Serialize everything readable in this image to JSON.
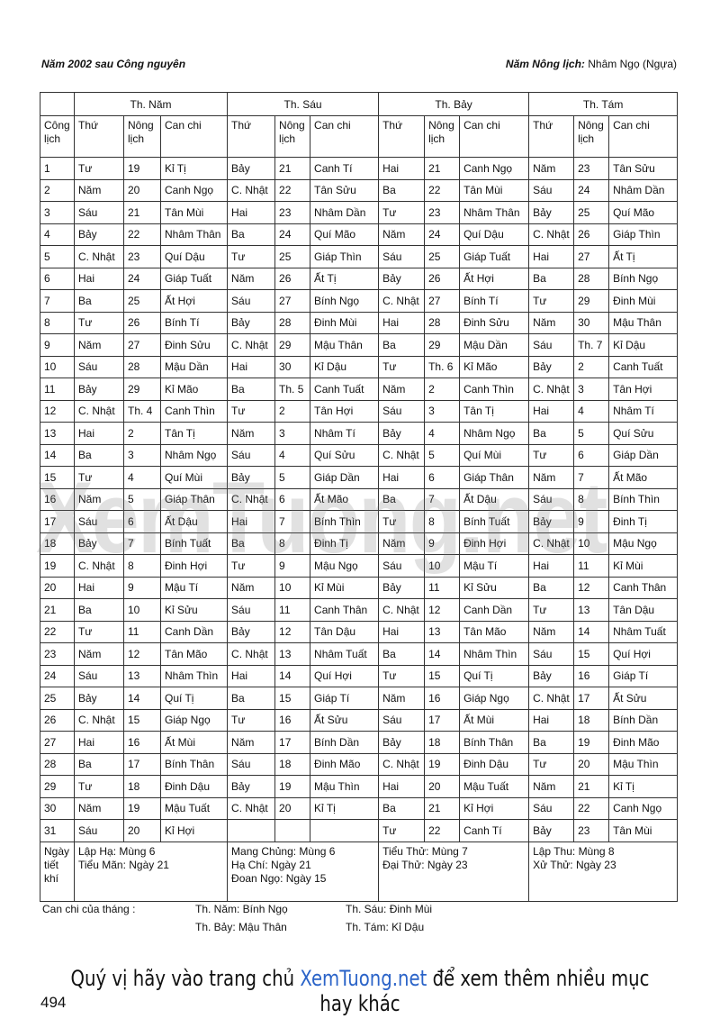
{
  "header": {
    "left": "Năm 2002  sau Công nguyên",
    "right_label": "Năm Nông lịch:",
    "right_value": "Nhâm Ngọ (Ngựa)"
  },
  "table": {
    "months": [
      "Th. Năm",
      "Th. Sáu",
      "Th. Bảy",
      "Th. Tám"
    ],
    "day_header": "Công lịch",
    "sub_headers": [
      "Thứ",
      "Nông lịch",
      "Can chi"
    ],
    "rows": [
      [
        1,
        "Tư",
        19,
        "Kỉ Tị",
        "Bảy",
        21,
        "Canh Tí",
        "Hai",
        21,
        "Canh Ngọ",
        "Năm",
        23,
        "Tân Sửu"
      ],
      [
        2,
        "Năm",
        20,
        "Canh Ngọ",
        "C. Nhật",
        22,
        "Tân Sửu",
        "Ba",
        22,
        "Tân Mùi",
        "Sáu",
        24,
        "Nhâm Dần"
      ],
      [
        3,
        "Sáu",
        21,
        "Tân Mùi",
        "Hai",
        23,
        "Nhâm Dần",
        "Tư",
        23,
        "Nhâm Thân",
        "Bảy",
        25,
        "Quí Mão"
      ],
      [
        4,
        "Bảy",
        22,
        "Nhâm Thân",
        "Ba",
        24,
        "Quí Mão",
        "Năm",
        24,
        "Quí Dậu",
        "C. Nhật",
        26,
        "Giáp Thìn"
      ],
      [
        5,
        "C. Nhật",
        23,
        "Quí Dậu",
        "Tư",
        25,
        "Giáp Thìn",
        "Sáu",
        25,
        "Giáp Tuất",
        "Hai",
        27,
        "Ất Tị"
      ],
      [
        6,
        "Hai",
        24,
        "Giáp Tuất",
        "Năm",
        26,
        "Ất Tị",
        "Bảy",
        26,
        "Ất Hợi",
        "Ba",
        28,
        "Bính Ngọ"
      ],
      [
        7,
        "Ba",
        25,
        "Ất Hợi",
        "Sáu",
        27,
        "Bính Ngọ",
        "C. Nhật",
        27,
        "Bính Tí",
        "Tư",
        29,
        "Đinh Mùi"
      ],
      [
        8,
        "Tư",
        26,
        "Bính Tí",
        "Bảy",
        28,
        "Đinh Mùi",
        "Hai",
        28,
        "Đinh Sửu",
        "Năm",
        30,
        "Mậu Thân"
      ],
      [
        9,
        "Năm",
        27,
        "Đinh Sửu",
        "C. Nhật",
        29,
        "Mậu Thân",
        "Ba",
        29,
        "Mậu Dần",
        "Sáu",
        "Th. 7",
        "Kỉ Dậu"
      ],
      [
        10,
        "Sáu",
        28,
        "Mậu Dần",
        "Hai",
        30,
        "Kỉ Dậu",
        "Tư",
        "Th. 6",
        "Kỉ Mão",
        "Bảy",
        2,
        "Canh Tuất"
      ],
      [
        11,
        "Bảy",
        29,
        "Kỉ Mão",
        "Ba",
        "Th. 5",
        "Canh Tuất",
        "Năm",
        2,
        "Canh Thìn",
        "C. Nhật",
        3,
        "Tân Hợi"
      ],
      [
        12,
        "C. Nhật",
        "Th. 4",
        "Canh Thìn",
        "Tư",
        2,
        "Tân Hợi",
        "Sáu",
        3,
        "Tân Tị",
        "Hai",
        4,
        "Nhâm Tí"
      ],
      [
        13,
        "Hai",
        2,
        "Tân Tị",
        "Năm",
        3,
        "Nhâm Tí",
        "Bảy",
        4,
        "Nhâm Ngọ",
        "Ba",
        5,
        "Quí Sửu"
      ],
      [
        14,
        "Ba",
        3,
        "Nhâm Ngọ",
        "Sáu",
        4,
        "Quí Sửu",
        "C. Nhật",
        5,
        "Quí Mùi",
        "Tư",
        6,
        "Giáp Dần"
      ],
      [
        15,
        "Tư",
        4,
        "Quí Mùi",
        "Bảy",
        5,
        "Giáp Dần",
        "Hai",
        6,
        "Giáp Thân",
        "Năm",
        7,
        "Ất Mão"
      ],
      [
        16,
        "Năm",
        5,
        "Giáp Thân",
        "C. Nhật",
        6,
        "Ất Mão",
        "Ba",
        7,
        "Ất Dậu",
        "Sáu",
        8,
        "Bính Thìn"
      ],
      [
        17,
        "Sáu",
        6,
        "Ất Dậu",
        "Hai",
        7,
        "Bính Thìn",
        "Tư",
        8,
        "Bính Tuất",
        "Bảy",
        9,
        "Đinh Tị"
      ],
      [
        18,
        "Bảy",
        7,
        "Bính Tuất",
        "Ba",
        8,
        "Đinh Tị",
        "Năm",
        9,
        "Đinh Hợi",
        "C. Nhật",
        10,
        "Mậu Ngọ"
      ],
      [
        19,
        "C. Nhật",
        8,
        "Đinh Hợi",
        "Tư",
        9,
        "Mậu Ngọ",
        "Sáu",
        10,
        "Mậu Tí",
        "Hai",
        11,
        "Kỉ Mùi"
      ],
      [
        20,
        "Hai",
        9,
        "Mậu Tí",
        "Năm",
        10,
        "Kỉ Mùi",
        "Bảy",
        11,
        "Kỉ Sửu",
        "Ba",
        12,
        "Canh Thân"
      ],
      [
        21,
        "Ba",
        10,
        "Kỉ Sửu",
        "Sáu",
        11,
        "Canh Thân",
        "C. Nhật",
        12,
        "Canh Dần",
        "Tư",
        13,
        "Tân Dậu"
      ],
      [
        22,
        "Tư",
        11,
        "Canh Dần",
        "Bảy",
        12,
        "Tân Dậu",
        "Hai",
        13,
        "Tân Mão",
        "Năm",
        14,
        "Nhâm Tuất"
      ],
      [
        23,
        "Năm",
        12,
        "Tân Mão",
        "C. Nhật",
        13,
        "Nhâm Tuất",
        "Ba",
        14,
        "Nhâm Thìn",
        "Sáu",
        15,
        "Quí Hợi"
      ],
      [
        24,
        "Sáu",
        13,
        "Nhâm Thìn",
        "Hai",
        14,
        "Quí Hợi",
        "Tư",
        15,
        "Quí Tị",
        "Bảy",
        16,
        "Giáp Tí"
      ],
      [
        25,
        "Bảy",
        14,
        "Quí Tị",
        "Ba",
        15,
        "Giáp Tí",
        "Năm",
        16,
        "Giáp Ngọ",
        "C. Nhật",
        17,
        "Ất Sửu"
      ],
      [
        26,
        "C. Nhật",
        15,
        "Giáp Ngọ",
        "Tư",
        16,
        "Ất Sửu",
        "Sáu",
        17,
        "Ất Mùi",
        "Hai",
        18,
        "Bính Dần"
      ],
      [
        27,
        "Hai",
        16,
        "Ất Mùi",
        "Năm",
        17,
        "Bính Dần",
        "Bảy",
        18,
        "Bính Thân",
        "Ba",
        19,
        "Đinh Mão"
      ],
      [
        28,
        "Ba",
        17,
        "Bính Thân",
        "Sáu",
        18,
        "Đinh Mão",
        "C. Nhật",
        19,
        "Đinh Dậu",
        "Tư",
        20,
        "Mậu Thìn"
      ],
      [
        29,
        "Tư",
        18,
        "Đinh Dậu",
        "Bảy",
        19,
        "Mậu Thìn",
        "Hai",
        20,
        "Mậu Tuất",
        "Năm",
        21,
        "Kỉ Tị"
      ],
      [
        30,
        "Năm",
        19,
        "Mậu Tuất",
        "C. Nhật",
        20,
        "Kỉ Tị",
        "Ba",
        21,
        "Kỉ Hợi",
        "Sáu",
        22,
        "Canh Ngọ"
      ],
      [
        31,
        "Sáu",
        20,
        "Kỉ Hợi",
        null,
        null,
        null,
        "Tư",
        22,
        "Canh Tí",
        "Bảy",
        23,
        "Tân Mùi"
      ]
    ],
    "solar_terms_label": "Ngày tiết khí",
    "solar_terms": [
      [
        "Lập Hạ: Mùng 6",
        "Tiểu Mãn: Ngày 21"
      ],
      [
        "Mang Chủng: Mùng 6",
        "Hạ Chí: Ngày 21",
        "Đoan Ngọ: Ngày 15"
      ],
      [
        "Tiểu Thử: Mùng 7",
        "Đại Thử: Ngày 23"
      ],
      [
        "Lập Thu: Mùng 8",
        "Xử Thử: Ngày 23"
      ]
    ]
  },
  "month_canchi": {
    "label": "Can chi của tháng :",
    "items": [
      "Th. Năm: Bính Ngọ",
      "Th. Sáu: Đinh Mùi",
      "Th. Bảy: Mậu Thân",
      "Th. Tám: Kỉ Dậu"
    ]
  },
  "watermark": "XemTuong.net",
  "banner": {
    "prefix": "Quý vị hãy vào trang chủ",
    "link": "XemTuong.net",
    "suffix": "để xem thêm nhiều mục hay khác"
  },
  "page_number": "494"
}
